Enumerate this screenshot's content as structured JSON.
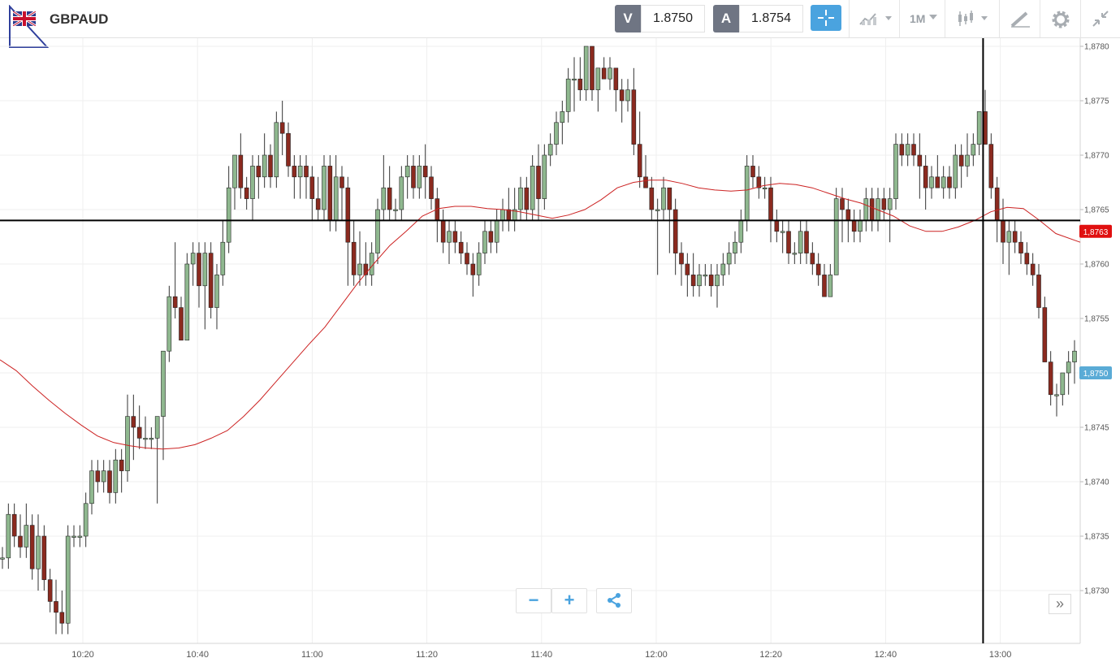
{
  "header": {
    "symbol": "GBPAUD",
    "sell_label": "V",
    "sell_price": "1.8750",
    "buy_label": "A",
    "buy_price": "1.8754",
    "timeframe": "1M",
    "crosshair_icon": "crosshair-icon",
    "line_chart_icon": "line-chart-icon",
    "candles_icon": "candlestick-icon",
    "draw_icon": "draw-pencil-icon",
    "settings_icon": "gear-icon",
    "collapse_icon": "collapse-icon",
    "flag_icon": "uk-flag-icon"
  },
  "controls": {
    "zoom_out": "−",
    "zoom_in": "+",
    "share_icon": "share-icon",
    "more": "»"
  },
  "colors": {
    "bull": "#8fb88f",
    "bear": "#8b2a1f",
    "ma": "#cc2222",
    "accent": "#4aa3df",
    "price_tag_red": "#e01010",
    "price_tag_blue": "#5aabd6"
  },
  "chart_data": {
    "type": "candlestick",
    "x_ticks": [
      "10:20",
      "10:40",
      "11:00",
      "11:20",
      "11:40",
      "12:00",
      "12:20",
      "12:40",
      "13:00"
    ],
    "y_ticks": [
      "1,8730",
      "1,8735",
      "1,8740",
      "1,8745",
      "1,8750",
      "1,8755",
      "1,8760",
      "1,8765",
      "1,8770",
      "1,8775",
      "1,8780"
    ],
    "ylim": [
      1.87255,
      1.87805
    ],
    "grid": true,
    "crosshair": {
      "price": 1.8764,
      "time": "12:57"
    },
    "price_tags": [
      {
        "label": "1,8763",
        "value": 1.8763,
        "color": "red"
      },
      {
        "label": "1,8750",
        "value": 1.875,
        "color": "blue"
      }
    ],
    "candles": [
      [
        1.8733,
        1.8734,
        1.8732,
        1.8733
      ],
      [
        1.8733,
        1.8738,
        1.8732,
        1.8737
      ],
      [
        1.8737,
        1.8738,
        1.8734,
        1.8735
      ],
      [
        1.8735,
        1.8737,
        1.8733,
        1.8734
      ],
      [
        1.8734,
        1.8738,
        1.8733,
        1.8736
      ],
      [
        1.8736,
        1.8737,
        1.8731,
        1.8732
      ],
      [
        1.8732,
        1.8737,
        1.873,
        1.8735
      ],
      [
        1.8735,
        1.8736,
        1.873,
        1.8731
      ],
      [
        1.8731,
        1.8732,
        1.8728,
        1.8729
      ],
      [
        1.8729,
        1.8731,
        1.8726,
        1.8728
      ],
      [
        1.8728,
        1.873,
        1.8726,
        1.8727
      ],
      [
        1.8727,
        1.8736,
        1.8726,
        1.8735
      ],
      [
        1.8735,
        1.8736,
        1.8734,
        1.8735
      ],
      [
        1.8735,
        1.8736,
        1.8734,
        1.8735
      ],
      [
        1.8735,
        1.8739,
        1.8734,
        1.8738
      ],
      [
        1.8738,
        1.8742,
        1.8737,
        1.8741
      ],
      [
        1.8741,
        1.8742,
        1.8739,
        1.874
      ],
      [
        1.874,
        1.8742,
        1.8739,
        1.8741
      ],
      [
        1.8741,
        1.8742,
        1.8738,
        1.8739
      ],
      [
        1.8739,
        1.8743,
        1.8738,
        1.8742
      ],
      [
        1.8742,
        1.8743,
        1.8739,
        1.8741
      ],
      [
        1.8741,
        1.8748,
        1.874,
        1.8746
      ],
      [
        1.8746,
        1.8748,
        1.8742,
        1.8745
      ],
      [
        1.8745,
        1.8747,
        1.8743,
        1.8744
      ],
      [
        1.8744,
        1.8746,
        1.8743,
        1.8744
      ],
      [
        1.8744,
        1.8745,
        1.8743,
        1.8744
      ],
      [
        1.8744,
        1.8746,
        1.8738,
        1.8746
      ],
      [
        1.8746,
        1.8752,
        1.8742,
        1.8752
      ],
      [
        1.8752,
        1.8758,
        1.8751,
        1.8757
      ],
      [
        1.8757,
        1.8762,
        1.8755,
        1.8756
      ],
      [
        1.8756,
        1.8757,
        1.8753,
        1.8753
      ],
      [
        1.8753,
        1.8761,
        1.8753,
        1.876
      ],
      [
        1.876,
        1.8762,
        1.8758,
        1.8761
      ],
      [
        1.8761,
        1.8762,
        1.8756,
        1.8758
      ],
      [
        1.8758,
        1.8762,
        1.8754,
        1.8761
      ],
      [
        1.8761,
        1.8762,
        1.8755,
        1.8756
      ],
      [
        1.8756,
        1.876,
        1.8754,
        1.8759
      ],
      [
        1.8759,
        1.8764,
        1.8758,
        1.8762
      ],
      [
        1.8762,
        1.8769,
        1.8761,
        1.8767
      ],
      [
        1.8767,
        1.877,
        1.8765,
        1.877
      ],
      [
        1.877,
        1.8772,
        1.8766,
        1.8767
      ],
      [
        1.8767,
        1.8768,
        1.8765,
        1.8766
      ],
      [
        1.8766,
        1.877,
        1.8764,
        1.8769
      ],
      [
        1.8769,
        1.877,
        1.8766,
        1.8768
      ],
      [
        1.8768,
        1.8772,
        1.8767,
        1.877
      ],
      [
        1.877,
        1.8771,
        1.8767,
        1.8768
      ],
      [
        1.8768,
        1.8774,
        1.8767,
        1.8773
      ],
      [
        1.8773,
        1.8775,
        1.877,
        1.8772
      ],
      [
        1.8772,
        1.8773,
        1.8768,
        1.8769
      ],
      [
        1.8769,
        1.877,
        1.8766,
        1.8768
      ],
      [
        1.8768,
        1.877,
        1.8766,
        1.8769
      ],
      [
        1.8769,
        1.877,
        1.8766,
        1.8768
      ],
      [
        1.8768,
        1.8769,
        1.8764,
        1.8766
      ],
      [
        1.8766,
        1.8768,
        1.8764,
        1.8765
      ],
      [
        1.8765,
        1.877,
        1.8764,
        1.8769
      ],
      [
        1.8769,
        1.877,
        1.8763,
        1.8764
      ],
      [
        1.8764,
        1.877,
        1.8763,
        1.8768
      ],
      [
        1.8768,
        1.8769,
        1.8764,
        1.8767
      ],
      [
        1.8767,
        1.8768,
        1.8758,
        1.8762
      ],
      [
        1.8762,
        1.8764,
        1.8758,
        1.8759
      ],
      [
        1.8759,
        1.8763,
        1.8758,
        1.876
      ],
      [
        1.876,
        1.8762,
        1.8758,
        1.8759
      ],
      [
        1.8759,
        1.8762,
        1.8758,
        1.8761
      ],
      [
        1.8761,
        1.8766,
        1.876,
        1.8765
      ],
      [
        1.8765,
        1.877,
        1.8764,
        1.8767
      ],
      [
        1.8767,
        1.8769,
        1.8764,
        1.8765
      ],
      [
        1.8765,
        1.8766,
        1.8764,
        1.8765
      ],
      [
        1.8765,
        1.8769,
        1.8764,
        1.8768
      ],
      [
        1.8768,
        1.877,
        1.8766,
        1.8769
      ],
      [
        1.8769,
        1.877,
        1.8766,
        1.8767
      ],
      [
        1.8767,
        1.877,
        1.8766,
        1.8769
      ],
      [
        1.8769,
        1.8771,
        1.8766,
        1.8768
      ],
      [
        1.8768,
        1.8769,
        1.8765,
        1.8766
      ],
      [
        1.8766,
        1.8767,
        1.8762,
        1.8764
      ],
      [
        1.8764,
        1.8765,
        1.8761,
        1.8762
      ],
      [
        1.8762,
        1.8764,
        1.876,
        1.8763
      ],
      [
        1.8763,
        1.8764,
        1.8761,
        1.8762
      ],
      [
        1.8762,
        1.8763,
        1.876,
        1.8761
      ],
      [
        1.8761,
        1.8762,
        1.8759,
        1.876
      ],
      [
        1.876,
        1.8761,
        1.8757,
        1.8759
      ],
      [
        1.8759,
        1.8762,
        1.8758,
        1.8761
      ],
      [
        1.8761,
        1.8764,
        1.876,
        1.8763
      ],
      [
        1.8763,
        1.8764,
        1.8761,
        1.8762
      ],
      [
        1.8762,
        1.8765,
        1.8761,
        1.8764
      ],
      [
        1.8764,
        1.8766,
        1.8763,
        1.8765
      ],
      [
        1.8765,
        1.8767,
        1.8763,
        1.8764
      ],
      [
        1.8764,
        1.8767,
        1.8763,
        1.8765
      ],
      [
        1.8765,
        1.8768,
        1.8764,
        1.8767
      ],
      [
        1.8767,
        1.8768,
        1.8764,
        1.8765
      ],
      [
        1.8765,
        1.877,
        1.8764,
        1.8769
      ],
      [
        1.8769,
        1.8771,
        1.8764,
        1.8766
      ],
      [
        1.8766,
        1.8771,
        1.8765,
        1.877
      ],
      [
        1.877,
        1.8772,
        1.8769,
        1.8771
      ],
      [
        1.8771,
        1.8774,
        1.877,
        1.8773
      ],
      [
        1.8773,
        1.8775,
        1.8771,
        1.8774
      ],
      [
        1.8774,
        1.8778,
        1.8773,
        1.8777
      ],
      [
        1.8777,
        1.8779,
        1.8774,
        1.8777
      ],
      [
        1.8777,
        1.8779,
        1.8775,
        1.8776
      ],
      [
        1.8776,
        1.878,
        1.8775,
        1.878
      ],
      [
        1.878,
        1.878,
        1.8775,
        1.8776
      ],
      [
        1.8776,
        1.8778,
        1.8774,
        1.8778
      ],
      [
        1.8778,
        1.8779,
        1.8777,
        1.8777
      ],
      [
        1.8777,
        1.8779,
        1.8776,
        1.8778
      ],
      [
        1.8778,
        1.8778,
        1.8774,
        1.8776
      ],
      [
        1.8776,
        1.8777,
        1.8773,
        1.8775
      ],
      [
        1.8775,
        1.8777,
        1.8774,
        1.8776
      ],
      [
        1.8776,
        1.8778,
        1.877,
        1.8771
      ],
      [
        1.8771,
        1.8774,
        1.8767,
        1.8768
      ],
      [
        1.8768,
        1.877,
        1.8767,
        1.8767
      ],
      [
        1.8767,
        1.8768,
        1.8764,
        1.8765
      ],
      [
        1.8765,
        1.8766,
        1.8759,
        1.8765
      ],
      [
        1.8765,
        1.8768,
        1.8764,
        1.8767
      ],
      [
        1.8767,
        1.8767,
        1.8761,
        1.8765
      ],
      [
        1.8765,
        1.8766,
        1.8759,
        1.8761
      ],
      [
        1.8761,
        1.8762,
        1.8758,
        1.876
      ],
      [
        1.876,
        1.8761,
        1.8757,
        1.8759
      ],
      [
        1.8759,
        1.8761,
        1.8757,
        1.8758
      ],
      [
        1.8758,
        1.876,
        1.8757,
        1.8759
      ],
      [
        1.8759,
        1.876,
        1.8758,
        1.8759
      ],
      [
        1.8759,
        1.876,
        1.8757,
        1.8758
      ],
      [
        1.8758,
        1.876,
        1.8756,
        1.8759
      ],
      [
        1.8759,
        1.8761,
        1.8758,
        1.876
      ],
      [
        1.876,
        1.8762,
        1.8759,
        1.8761
      ],
      [
        1.8761,
        1.8763,
        1.876,
        1.8762
      ],
      [
        1.8762,
        1.8765,
        1.8761,
        1.8764
      ],
      [
        1.8764,
        1.877,
        1.8763,
        1.8769
      ],
      [
        1.8769,
        1.877,
        1.8767,
        1.8768
      ],
      [
        1.8768,
        1.8769,
        1.8766,
        1.8767
      ],
      [
        1.8767,
        1.8768,
        1.8766,
        1.8767
      ],
      [
        1.8767,
        1.8768,
        1.8762,
        1.8764
      ],
      [
        1.8764,
        1.8765,
        1.8762,
        1.8763
      ],
      [
        1.8763,
        1.8764,
        1.8761,
        1.8763
      ],
      [
        1.8763,
        1.8764,
        1.876,
        1.8761
      ],
      [
        1.8761,
        1.8762,
        1.876,
        1.8761
      ],
      [
        1.8761,
        1.8764,
        1.876,
        1.8763
      ],
      [
        1.8763,
        1.8764,
        1.876,
        1.8761
      ],
      [
        1.8761,
        1.8762,
        1.8759,
        1.876
      ],
      [
        1.876,
        1.8761,
        1.8758,
        1.8759
      ],
      [
        1.8759,
        1.876,
        1.8757,
        1.8757
      ],
      [
        1.8757,
        1.876,
        1.8757,
        1.8759
      ],
      [
        1.8759,
        1.8767,
        1.8759,
        1.8766
      ],
      [
        1.8766,
        1.8767,
        1.8762,
        1.8765
      ],
      [
        1.8765,
        1.8766,
        1.8762,
        1.8764
      ],
      [
        1.8764,
        1.8765,
        1.8762,
        1.8763
      ],
      [
        1.8763,
        1.8765,
        1.8762,
        1.8764
      ],
      [
        1.8764,
        1.8767,
        1.8763,
        1.8766
      ],
      [
        1.8766,
        1.8767,
        1.8763,
        1.8764
      ],
      [
        1.8764,
        1.8767,
        1.8763,
        1.8766
      ],
      [
        1.8766,
        1.8767,
        1.8764,
        1.8765
      ],
      [
        1.8765,
        1.8767,
        1.8762,
        1.8766
      ],
      [
        1.8766,
        1.8772,
        1.8765,
        1.8771
      ],
      [
        1.8771,
        1.8772,
        1.8769,
        1.877
      ],
      [
        1.877,
        1.8772,
        1.8769,
        1.8771
      ],
      [
        1.8771,
        1.8772,
        1.8769,
        1.877
      ],
      [
        1.877,
        1.8772,
        1.8766,
        1.8769
      ],
      [
        1.8769,
        1.877,
        1.8765,
        1.8767
      ],
      [
        1.8767,
        1.8769,
        1.8766,
        1.8768
      ],
      [
        1.8768,
        1.877,
        1.8767,
        1.8767
      ],
      [
        1.8767,
        1.8769,
        1.8766,
        1.8768
      ],
      [
        1.8768,
        1.8769,
        1.8766,
        1.8767
      ],
      [
        1.8767,
        1.8771,
        1.8766,
        1.877
      ],
      [
        1.877,
        1.8771,
        1.8767,
        1.8769
      ],
      [
        1.8769,
        1.8772,
        1.8768,
        1.877
      ],
      [
        1.877,
        1.8772,
        1.8769,
        1.8771
      ],
      [
        1.8771,
        1.8774,
        1.877,
        1.8774
      ],
      [
        1.8774,
        1.8776,
        1.8771,
        1.8771
      ],
      [
        1.8771,
        1.8772,
        1.8766,
        1.8767
      ],
      [
        1.8767,
        1.8768,
        1.8762,
        1.8764
      ],
      [
        1.8764,
        1.8766,
        1.876,
        1.8762
      ],
      [
        1.8762,
        1.8764,
        1.8759,
        1.8763
      ],
      [
        1.8763,
        1.8764,
        1.8761,
        1.8762
      ],
      [
        1.8762,
        1.8763,
        1.876,
        1.8761
      ],
      [
        1.8761,
        1.8762,
        1.8759,
        1.876
      ],
      [
        1.876,
        1.8761,
        1.8758,
        1.8759
      ],
      [
        1.8759,
        1.876,
        1.8755,
        1.8756
      ],
      [
        1.8756,
        1.8757,
        1.8751,
        1.8751
      ],
      [
        1.8751,
        1.8752,
        1.8747,
        1.8748
      ],
      [
        1.8748,
        1.8749,
        1.8746,
        1.8748
      ],
      [
        1.8748,
        1.875,
        1.8747,
        1.875
      ],
      [
        1.875,
        1.8752,
        1.8748,
        1.8751
      ],
      [
        1.8751,
        1.8753,
        1.8749,
        1.8752
      ]
    ],
    "ma_line": [
      [
        0,
        1.87512
      ],
      [
        20,
        1.87502
      ],
      [
        40,
        1.87488
      ],
      [
        60,
        1.87475
      ],
      [
        80,
        1.87463
      ],
      [
        100,
        1.87452
      ],
      [
        120,
        1.87442
      ],
      [
        140,
        1.87436
      ],
      [
        160,
        1.87433
      ],
      [
        180,
        1.87431
      ],
      [
        200,
        1.8743
      ],
      [
        220,
        1.87431
      ],
      [
        240,
        1.87434
      ],
      [
        260,
        1.8744
      ],
      [
        280,
        1.87447
      ],
      [
        300,
        1.8746
      ],
      [
        320,
        1.87475
      ],
      [
        340,
        1.87492
      ],
      [
        360,
        1.87509
      ],
      [
        380,
        1.87526
      ],
      [
        400,
        1.87542
      ],
      [
        420,
        1.87562
      ],
      [
        440,
        1.87582
      ],
      [
        460,
        1.876
      ],
      [
        480,
        1.87617
      ],
      [
        500,
        1.8763
      ],
      [
        520,
        1.87644
      ],
      [
        540,
        1.87651
      ],
      [
        560,
        1.87653
      ],
      [
        580,
        1.87653
      ],
      [
        600,
        1.87651
      ],
      [
        620,
        1.8765
      ],
      [
        640,
        1.87648
      ],
      [
        660,
        1.87645
      ],
      [
        680,
        1.87642
      ],
      [
        700,
        1.87645
      ],
      [
        720,
        1.8765
      ],
      [
        740,
        1.87659
      ],
      [
        760,
        1.8767
      ],
      [
        780,
        1.87675
      ],
      [
        800,
        1.87677
      ],
      [
        820,
        1.87677
      ],
      [
        840,
        1.87674
      ],
      [
        860,
        1.8767
      ],
      [
        880,
        1.87668
      ],
      [
        900,
        1.87667
      ],
      [
        920,
        1.87668
      ],
      [
        940,
        1.87672
      ],
      [
        960,
        1.87674
      ],
      [
        980,
        1.87673
      ],
      [
        1000,
        1.8767
      ],
      [
        1020,
        1.87665
      ],
      [
        1040,
        1.8766
      ],
      [
        1060,
        1.87656
      ],
      [
        1080,
        1.8765
      ],
      [
        1100,
        1.87644
      ],
      [
        1120,
        1.87635
      ],
      [
        1140,
        1.8763
      ],
      [
        1160,
        1.8763
      ],
      [
        1180,
        1.87634
      ],
      [
        1200,
        1.8764
      ],
      [
        1220,
        1.87648
      ],
      [
        1240,
        1.87652
      ],
      [
        1260,
        1.87651
      ],
      [
        1280,
        1.8764
      ],
      [
        1300,
        1.87628
      ],
      [
        1330,
        1.8762
      ]
    ]
  }
}
